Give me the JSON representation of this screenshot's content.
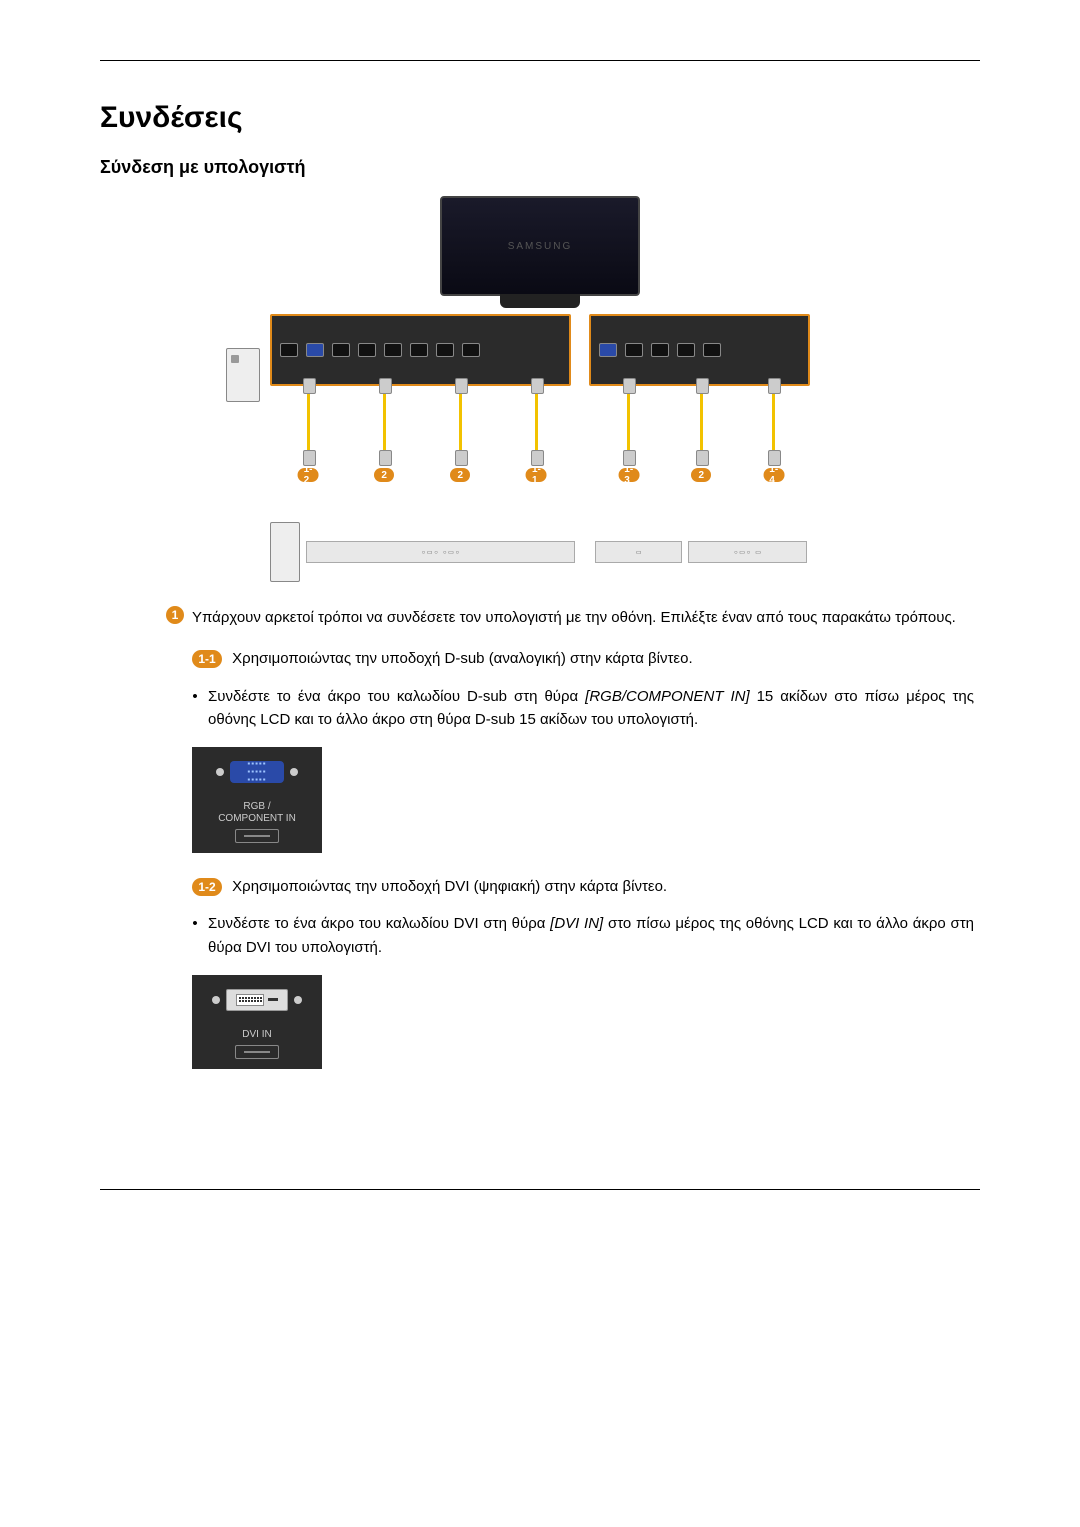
{
  "page": {
    "title": "Συνδέσεις",
    "subtitle": "Σύνδεση με υπολογιστή"
  },
  "badges": {
    "main": "1",
    "s11": "1-1",
    "s12": "1-2",
    "s13": "1-3",
    "s14": "1-4",
    "d2": "2"
  },
  "text": {
    "intro": "Υπάρχουν αρκετοί τρόποι να συνδέσετε τον υπολογιστή με την οθόνη. Επιλέξτε έναν από τους παρακάτω τρόπους.",
    "s11_lead": "Χρησιμοποιώντας την υποδοχή D-sub (αναλογική) στην κάρτα βίντεο.",
    "s11_bullet_pre": "Συνδέστε το ένα άκρο του καλωδίου D-sub στη θύρα ",
    "s11_bullet_em": "[RGB/COMPONENT IN]",
    "s11_bullet_post": " 15 ακίδων στο πίσω μέρος της οθόνης LCD και το άλλο άκρο στη θύρα D-sub 15 ακίδων του υπολογιστή.",
    "s12_lead": "Χρησιμοποιώντας την υποδοχή DVI (ψηφιακή) στην κάρτα βίντεο.",
    "s12_bullet_pre": "Συνδέστε το ένα άκρο του καλωδίου DVI στη θύρα ",
    "s12_bullet_em": "[DVI IN]",
    "s12_bullet_post": " στο πίσω μέρος της οθόνης LCD και το άλλο άκρο στη θύρα DVI του υπολογιστή."
  },
  "port_labels": {
    "rgb": "RGB /\nCOMPONENT IN",
    "dvi": "DVI IN"
  },
  "colors": {
    "accent": "#e08a1a",
    "panel_bg": "#2b2b2b",
    "vga_blue": "#2a4aa8",
    "cable_yellow": "#f2c200",
    "text": "#000000",
    "bg": "#ffffff"
  },
  "diagram": {
    "monitor_brand": "SAMSUNG",
    "left_labels": [
      "1-2",
      "2",
      "2",
      "1-1"
    ],
    "right_labels": [
      "1-3",
      "2",
      "1-4"
    ]
  }
}
